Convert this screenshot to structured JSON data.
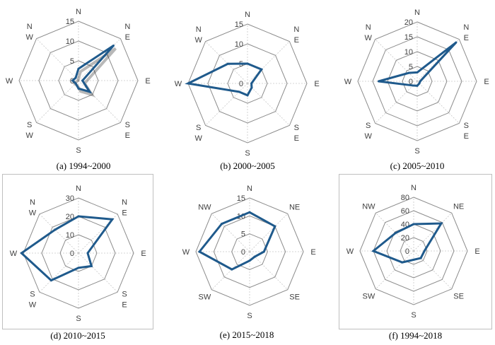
{
  "chart_data": [
    {
      "type": "radar",
      "caption": "(a) 1994~2000",
      "categories": [
        "N",
        "NE",
        "E",
        "SE",
        "S",
        "SW",
        "W",
        "NW"
      ],
      "direction_labels": [
        [
          "N"
        ],
        [
          "N",
          "E"
        ],
        [
          "E"
        ],
        [
          "S",
          "E"
        ],
        [
          "S"
        ],
        [
          "S",
          "W"
        ],
        [
          "W"
        ],
        [
          "N",
          "W"
        ]
      ],
      "ticks": [
        "0",
        "5",
        "10",
        "15"
      ],
      "rmax": 15,
      "values": [
        3,
        12.5,
        1,
        4,
        2,
        1,
        1.5,
        1
      ],
      "framed": false,
      "shadow": true
    },
    {
      "type": "radar",
      "caption": "(b) 2000~2005",
      "categories": [
        "N",
        "NE",
        "E",
        "SE",
        "S",
        "SW",
        "W",
        "NW"
      ],
      "direction_labels": [
        [
          "N"
        ],
        [
          "N",
          "E"
        ],
        [
          "E"
        ],
        [
          "S",
          "E"
        ],
        [
          "S"
        ],
        [
          "S",
          "W"
        ],
        [
          "W"
        ],
        [
          "N",
          "W"
        ]
      ],
      "ticks": [
        "0",
        "5",
        "10",
        "15"
      ],
      "rmax": 15,
      "values": [
        5,
        5,
        1,
        1.5,
        3,
        3,
        15,
        7
      ],
      "framed": false,
      "shadow": false
    },
    {
      "type": "radar",
      "caption": "(c) 2005~2010",
      "categories": [
        "N",
        "NE",
        "E",
        "SE",
        "S",
        "SW",
        "W",
        "NW"
      ],
      "direction_labels": [
        [
          "N"
        ],
        [
          "N",
          "E"
        ],
        [
          "E"
        ],
        [
          "S",
          "E"
        ],
        [
          "S"
        ],
        [
          "S",
          "W"
        ],
        [
          "W"
        ],
        [
          "N",
          "W"
        ]
      ],
      "ticks": [
        "0",
        "5",
        "10",
        "15",
        "20"
      ],
      "rmax": 20,
      "values": [
        3,
        18.5,
        1,
        1,
        1.5,
        2,
        13,
        4
      ],
      "framed": false,
      "shadow": false
    },
    {
      "type": "radar",
      "caption": "(d) 2010~2015",
      "categories": [
        "N",
        "NE",
        "E",
        "SE",
        "S",
        "SW",
        "W",
        "NW"
      ],
      "direction_labels": [
        [
          "N"
        ],
        [
          "N",
          "E"
        ],
        [
          "E"
        ],
        [
          "S",
          "E"
        ],
        [
          "S"
        ],
        [
          "S",
          "W"
        ],
        [
          "W"
        ],
        [
          "N",
          "W"
        ]
      ],
      "ticks": [
        "0",
        "10",
        "20",
        "30"
      ],
      "rmax": 30,
      "values": [
        20,
        26,
        5,
        10,
        8,
        21,
        31,
        18
      ],
      "framed": true,
      "shadow": false
    },
    {
      "type": "radar",
      "caption": "(e) 2015~2018",
      "categories": [
        "N",
        "NE",
        "E",
        "SE",
        "S",
        "SW",
        "W",
        "NW"
      ],
      "direction_labels": [
        [
          "N"
        ],
        [
          "NE"
        ],
        [
          "E"
        ],
        [
          "SE"
        ],
        [
          "S"
        ],
        [
          "SW"
        ],
        [
          "W"
        ],
        [
          "NW"
        ]
      ],
      "ticks": [
        "0",
        "5",
        "10",
        "15"
      ],
      "rmax": 15,
      "values": [
        11,
        10,
        4,
        2,
        2.5,
        7,
        14,
        11
      ],
      "framed": false,
      "shadow": false
    },
    {
      "type": "radar",
      "caption": "(f) 1994~2018",
      "categories": [
        "N",
        "NE",
        "E",
        "SE",
        "S",
        "SW",
        "W",
        "NW"
      ],
      "direction_labels": [
        [
          "N"
        ],
        [
          "NE"
        ],
        [
          "E"
        ],
        [
          "SE"
        ],
        [
          "S"
        ],
        [
          "SW"
        ],
        [
          "W"
        ],
        [
          "NW"
        ]
      ],
      "ticks": [
        "0",
        "20",
        "40",
        "60",
        "80"
      ],
      "rmax": 80,
      "values": [
        40,
        58,
        16,
        15,
        13,
        24,
        60,
        38
      ],
      "framed": true,
      "shadow": false
    }
  ]
}
